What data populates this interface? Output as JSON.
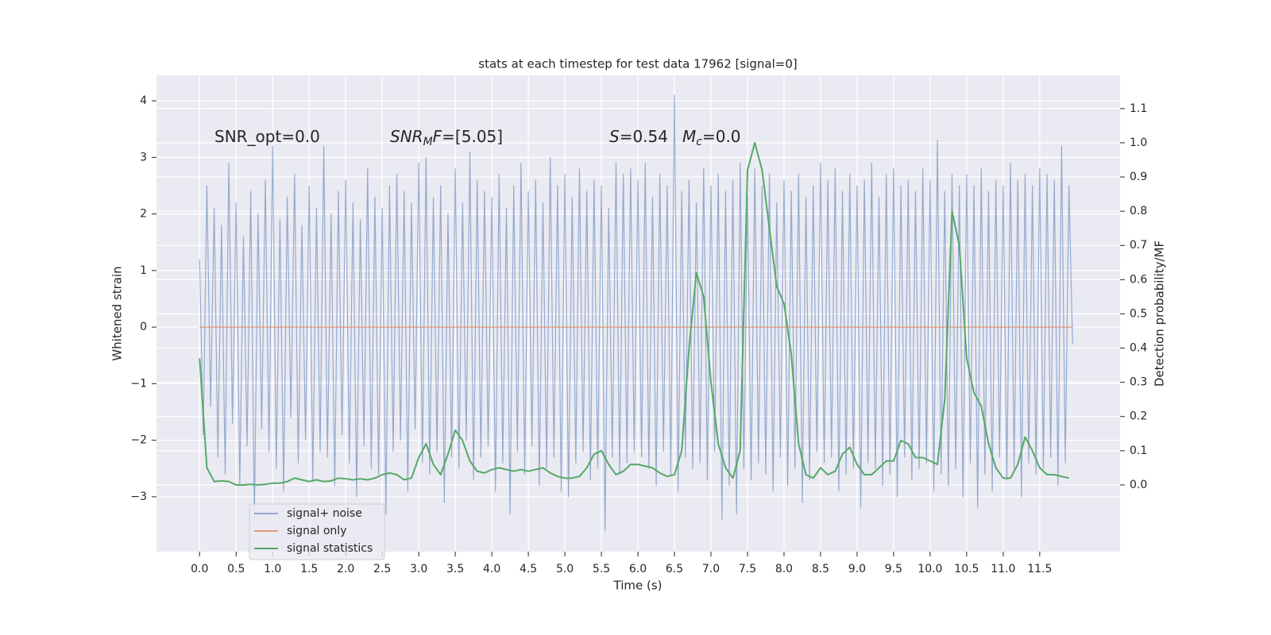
{
  "chart_data": {
    "type": "line",
    "title": "stats at each timestep for test data 17962 [signal=0]",
    "xlabel": "Time (s)",
    "ylabel": "Whitened strain",
    "y2label": "Detection probability/MF",
    "xlim": [
      -0.59,
      12.6
    ],
    "ylim": [
      -3.97,
      4.45
    ],
    "y2lim": [
      -0.195,
      1.197
    ],
    "xticks": [
      {
        "value": 0,
        "label": "0.0"
      },
      0.5,
      {
        "value": 1,
        "label": "1.0"
      },
      1.5,
      {
        "value": 2,
        "label": "2.0"
      },
      2.5,
      {
        "value": 3,
        "label": "3.0"
      },
      3.5,
      {
        "value": 4,
        "label": "4.0"
      },
      4.5,
      {
        "value": 5,
        "label": "5.0"
      },
      5.5,
      {
        "value": 6,
        "label": "6.0"
      },
      6.5,
      {
        "value": 7,
        "label": "7.0"
      },
      7.5,
      {
        "value": 8,
        "label": "8.0"
      },
      8.5,
      {
        "value": 9,
        "label": "9.0"
      },
      9.5,
      {
        "value": 10,
        "label": "10.0"
      },
      10.5,
      {
        "value": 11,
        "label": "11.0"
      },
      11.5
    ],
    "yticks": [
      {
        "value": -3,
        "label": "−3"
      },
      {
        "value": -2,
        "label": "−2"
      },
      {
        "value": -1,
        "label": "−1"
      },
      0,
      1,
      2,
      3,
      4
    ],
    "y2ticks": [
      {
        "value": 0,
        "label": "0.0"
      },
      0.1,
      0.2,
      0.3,
      0.4,
      0.5,
      0.6,
      0.7,
      0.8,
      0.9,
      {
        "value": 1,
        "label": "1.0"
      },
      1.1
    ],
    "grid": true,
    "legend": "lower left",
    "annotations": [
      {
        "parts": [
          {
            "text": "SNR_opt=0.0",
            "style": "normal"
          }
        ]
      },
      {
        "parts": [
          {
            "text": "SNR",
            "style": "italic"
          },
          {
            "text": "M",
            "style": "sub"
          },
          {
            "text": "F",
            "style": "italic"
          },
          {
            "text": "=[5.05]",
            "style": "normal"
          }
        ]
      },
      {
        "parts": [
          {
            "text": "S",
            "style": "italic"
          },
          {
            "text": "=0.54",
            "style": "normal"
          }
        ]
      },
      {
        "parts": [
          {
            "text": "M",
            "style": "italic"
          },
          {
            "text": "c",
            "style": "sub"
          },
          {
            "text": "=0.0",
            "style": "normal"
          }
        ]
      }
    ],
    "series": [
      {
        "name": "signal+ noise",
        "color": "#4c72b0",
        "alpha": 0.55,
        "x": [
          0,
          0.05,
          0.1,
          0.15,
          0.2,
          0.25,
          0.3,
          0.35,
          0.4,
          0.45,
          0.5,
          0.55,
          0.6,
          0.65,
          0.7,
          0.75,
          0.8,
          0.85,
          0.9,
          0.95,
          1,
          1.05,
          1.1,
          1.15,
          1.2,
          1.25,
          1.3,
          1.35,
          1.4,
          1.45,
          1.5,
          1.55,
          1.6,
          1.65,
          1.7,
          1.75,
          1.8,
          1.85,
          1.9,
          1.95,
          2,
          2.05,
          2.1,
          2.15,
          2.2,
          2.25,
          2.3,
          2.35,
          2.4,
          2.45,
          2.5,
          2.55,
          2.6,
          2.65,
          2.7,
          2.75,
          2.8,
          2.85,
          2.9,
          2.95,
          3,
          3.05,
          3.1,
          3.15,
          3.2,
          3.25,
          3.3,
          3.35,
          3.4,
          3.45,
          3.5,
          3.55,
          3.6,
          3.65,
          3.7,
          3.75,
          3.8,
          3.85,
          3.9,
          3.95,
          4,
          4.05,
          4.1,
          4.15,
          4.2,
          4.25,
          4.3,
          4.35,
          4.4,
          4.45,
          4.5,
          4.55,
          4.6,
          4.65,
          4.7,
          4.75,
          4.8,
          4.85,
          4.9,
          4.95,
          5,
          5.05,
          5.1,
          5.15,
          5.2,
          5.25,
          5.3,
          5.35,
          5.4,
          5.45,
          5.5,
          5.55,
          5.6,
          5.65,
          5.7,
          5.75,
          5.8,
          5.85,
          5.9,
          5.95,
          6,
          6.05,
          6.1,
          6.15,
          6.2,
          6.25,
          6.3,
          6.35,
          6.4,
          6.45,
          6.5,
          6.55,
          6.6,
          6.65,
          6.7,
          6.75,
          6.8,
          6.85,
          6.9,
          6.95,
          7,
          7.05,
          7.1,
          7.15,
          7.2,
          7.25,
          7.3,
          7.35,
          7.4,
          7.45,
          7.5,
          7.55,
          7.6,
          7.65,
          7.7,
          7.75,
          7.8,
          7.85,
          7.9,
          7.95,
          8,
          8.05,
          8.1,
          8.15,
          8.2,
          8.25,
          8.3,
          8.35,
          8.4,
          8.45,
          8.5,
          8.55,
          8.6,
          8.65,
          8.7,
          8.75,
          8.8,
          8.85,
          8.9,
          8.95,
          9,
          9.05,
          9.1,
          9.15,
          9.2,
          9.25,
          9.3,
          9.35,
          9.4,
          9.45,
          9.5,
          9.55,
          9.6,
          9.65,
          9.7,
          9.75,
          9.8,
          9.85,
          9.9,
          9.95,
          10,
          10.05,
          10.1,
          10.15,
          10.2,
          10.25,
          10.3,
          10.35,
          10.4,
          10.45,
          10.5,
          10.55,
          10.6,
          10.65,
          10.7,
          10.75,
          10.8,
          10.85,
          10.9,
          10.95,
          11,
          11.05,
          11.1,
          11.15,
          11.2,
          11.25,
          11.3,
          11.35,
          11.4,
          11.45,
          11.5,
          11.55,
          11.6,
          11.65,
          11.7,
          11.75,
          11.8,
          11.85,
          11.9,
          11.95
        ],
        "values": [
          1.2,
          -1.9,
          2.5,
          -1.4,
          2.1,
          -2.3,
          1.8,
          -2.6,
          2.9,
          -1.7,
          2.2,
          -2.8,
          1.6,
          -2.1,
          2.4,
          -3.4,
          2.0,
          -1.8,
          2.6,
          -2.2,
          3.2,
          -2.5,
          1.9,
          -2.9,
          2.3,
          -1.6,
          2.7,
          -2.4,
          1.8,
          -2.0,
          2.5,
          -2.7,
          2.1,
          -2.2,
          3.2,
          -2.3,
          2.0,
          -2.8,
          2.4,
          -1.9,
          2.6,
          -2.4,
          2.2,
          -3.0,
          1.9,
          -2.1,
          2.8,
          -2.5,
          2.3,
          -2.6,
          2.1,
          -3.3,
          2.5,
          -2.2,
          2.7,
          -2.0,
          2.4,
          -2.9,
          2.2,
          -1.8,
          2.9,
          -2.4,
          3.0,
          -2.6,
          2.3,
          -2.2,
          2.5,
          -3.1,
          2.0,
          -2.3,
          2.8,
          -2.5,
          2.2,
          -2.0,
          3.1,
          -2.7,
          2.6,
          -2.3,
          2.4,
          -2.1,
          2.3,
          -2.9,
          2.7,
          -2.4,
          2.1,
          -3.3,
          2.5,
          -2.2,
          2.9,
          -2.6,
          2.4,
          -2.1,
          2.6,
          -2.8,
          2.2,
          -2.5,
          3.0,
          -2.3,
          2.5,
          -2.9,
          2.7,
          -3.0,
          2.3,
          -2.4,
          2.8,
          -2.2,
          2.4,
          -2.7,
          2.6,
          -2.5,
          2.5,
          -3.6,
          2.1,
          -2.3,
          2.9,
          -2.6,
          2.7,
          -2.4,
          2.8,
          -2.2,
          2.6,
          -2.3,
          2.9,
          -2.5,
          2.3,
          -2.8,
          2.7,
          -2.2,
          2.5,
          -2.6,
          4.1,
          -2.9,
          2.4,
          -2.3,
          2.6,
          -2.5,
          2.2,
          -2.4,
          2.8,
          -2.7,
          2.5,
          -2.2,
          2.7,
          -3.4,
          2.4,
          -2.8,
          2.6,
          -3.3,
          2.9,
          -2.5,
          2.3,
          -2.7,
          2.8,
          -2.4,
          2.5,
          -2.6,
          2.7,
          -2.9,
          2.2,
          -2.3,
          2.6,
          -2.8,
          2.4,
          -2.5,
          2.7,
          -3.1,
          2.3,
          -2.7,
          2.5,
          -2.2,
          2.9,
          -2.4,
          2.6,
          -2.3,
          2.8,
          -2.9,
          2.4,
          -2.6,
          2.7,
          -2.5,
          2.5,
          -3.2,
          2.6,
          -2.4,
          2.9,
          -2.5,
          2.3,
          -2.8,
          2.7,
          -2.6,
          2.8,
          -3.0,
          2.5,
          -2.3,
          2.6,
          -2.7,
          2.4,
          -2.5,
          2.8,
          -2.4,
          2.6,
          -2.9,
          3.3,
          -2.6,
          2.4,
          -2.8,
          2.7,
          -2.5,
          2.5,
          -3.0,
          2.7,
          -2.4,
          2.5,
          -3.2,
          2.8,
          -2.6,
          2.4,
          -2.9,
          2.6,
          -2.3,
          2.5,
          -2.7,
          2.9,
          -2.5,
          2.6,
          -3.0,
          2.7,
          -2.4,
          2.5,
          -2.6,
          2.8,
          -2.5,
          2.7,
          -2.3,
          2.6,
          -2.8,
          3.2,
          -2.4,
          2.5,
          -0.3
        ]
      },
      {
        "name": "signal only",
        "color": "#dd8452",
        "alpha": 0.8,
        "x": [
          0,
          11.95
        ],
        "values": [
          0,
          0
        ]
      },
      {
        "name": "signal statistics",
        "color": "#55a868",
        "alpha": 1,
        "axis": "y2",
        "x": [
          0,
          0.1,
          0.2,
          0.3,
          0.4,
          0.5,
          0.6,
          0.7,
          0.8,
          0.9,
          1,
          1.1,
          1.2,
          1.3,
          1.4,
          1.5,
          1.6,
          1.7,
          1.8,
          1.9,
          2,
          2.1,
          2.2,
          2.3,
          2.4,
          2.5,
          2.6,
          2.7,
          2.8,
          2.9,
          3,
          3.1,
          3.2,
          3.3,
          3.4,
          3.5,
          3.6,
          3.7,
          3.8,
          3.9,
          4,
          4.1,
          4.2,
          4.3,
          4.4,
          4.5,
          4.6,
          4.7,
          4.8,
          4.9,
          5,
          5.1,
          5.2,
          5.3,
          5.4,
          5.5,
          5.6,
          5.7,
          5.8,
          5.9,
          6,
          6.1,
          6.2,
          6.3,
          6.4,
          6.5,
          6.6,
          6.7,
          6.8,
          6.9,
          7,
          7.1,
          7.2,
          7.3,
          7.4,
          7.5,
          7.6,
          7.7,
          7.8,
          7.9,
          8,
          8.1,
          8.2,
          8.3,
          8.4,
          8.5,
          8.6,
          8.7,
          8.8,
          8.9,
          9,
          9.1,
          9.2,
          9.3,
          9.4,
          9.5,
          9.6,
          9.7,
          9.8,
          9.9,
          10,
          10.1,
          10.2,
          10.3,
          10.4,
          10.5,
          10.6,
          10.7,
          10.8,
          10.9,
          11,
          11.1,
          11.2,
          11.3,
          11.4,
          11.5,
          11.6,
          11.7,
          11.8,
          11.9
        ],
        "values": [
          0.37,
          0.05,
          0.01,
          0.012,
          0.01,
          0.0,
          0.0,
          0.002,
          0.0,
          0.002,
          0.005,
          0.005,
          0.01,
          0.02,
          0.015,
          0.01,
          0.015,
          0.01,
          0.012,
          0.02,
          0.018,
          0.015,
          0.018,
          0.015,
          0.02,
          0.03,
          0.035,
          0.03,
          0.015,
          0.02,
          0.08,
          0.12,
          0.06,
          0.03,
          0.09,
          0.16,
          0.13,
          0.07,
          0.04,
          0.035,
          0.045,
          0.05,
          0.045,
          0.04,
          0.045,
          0.04,
          0.045,
          0.05,
          0.035,
          0.025,
          0.02,
          0.02,
          0.025,
          0.05,
          0.09,
          0.1,
          0.06,
          0.03,
          0.04,
          0.06,
          0.06,
          0.055,
          0.05,
          0.035,
          0.025,
          0.03,
          0.1,
          0.4,
          0.62,
          0.55,
          0.3,
          0.12,
          0.05,
          0.02,
          0.1,
          0.92,
          1.0,
          0.92,
          0.75,
          0.58,
          0.53,
          0.38,
          0.12,
          0.03,
          0.02,
          0.05,
          0.03,
          0.04,
          0.09,
          0.11,
          0.06,
          0.03,
          0.03,
          0.05,
          0.07,
          0.07,
          0.13,
          0.12,
          0.08,
          0.08,
          0.07,
          0.06,
          0.25,
          0.8,
          0.7,
          0.37,
          0.27,
          0.23,
          0.12,
          0.05,
          0.02,
          0.02,
          0.06,
          0.14,
          0.1,
          0.05,
          0.03,
          0.03,
          0.025,
          0.02
        ]
      }
    ]
  }
}
